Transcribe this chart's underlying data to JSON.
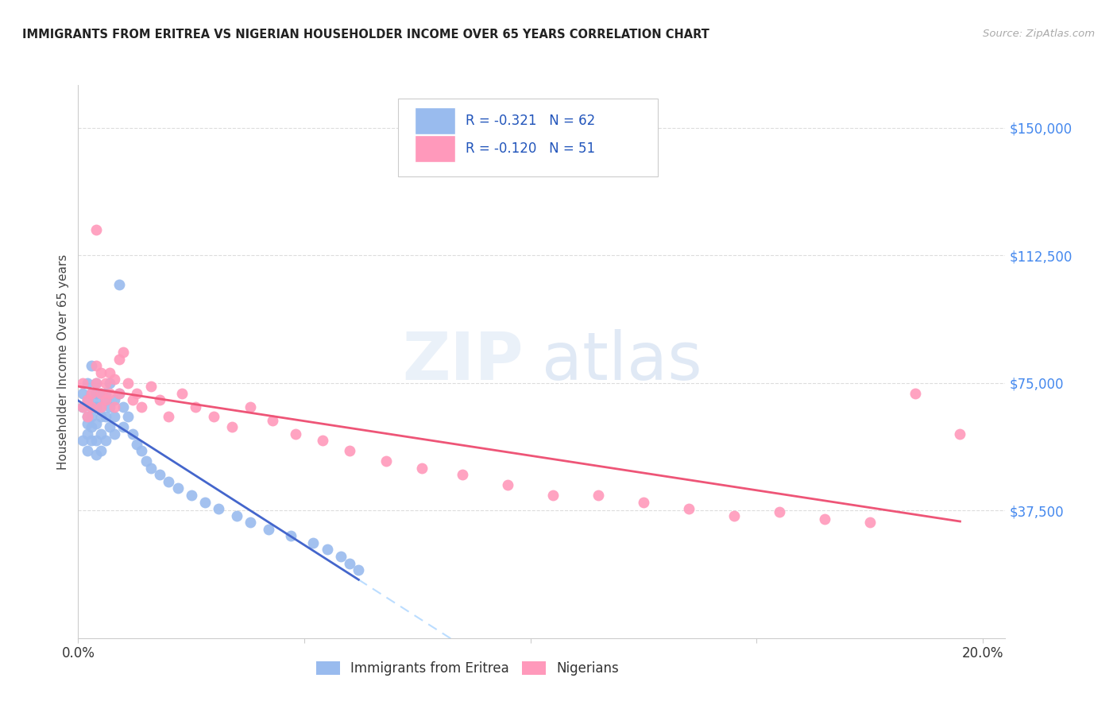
{
  "title": "IMMIGRANTS FROM ERITREA VS NIGERIAN HOUSEHOLDER INCOME OVER 65 YEARS CORRELATION CHART",
  "source": "Source: ZipAtlas.com",
  "ylabel": "Householder Income Over 65 years",
  "xlim": [
    0.0,
    0.205
  ],
  "ylim": [
    0,
    162500
  ],
  "yticks": [
    37500,
    75000,
    112500,
    150000
  ],
  "ytick_labels": [
    "$37,500",
    "$75,000",
    "$112,500",
    "$150,000"
  ],
  "xtick_labels": [
    "0.0%",
    "20.0%"
  ],
  "xtick_pos": [
    0.0,
    0.2
  ],
  "legend_eritrea": "R = -0.321   N = 62",
  "legend_nigerian": "R = -0.120   N = 51",
  "legend_label_eritrea": "Immigrants from Eritrea",
  "legend_label_nigerian": "Nigerians",
  "eritrea_color": "#99BBEE",
  "nigerian_color": "#FF99BB",
  "eritrea_line_color": "#4466CC",
  "nigerian_line_color": "#EE5577",
  "eritrea_ext_color": "#BBDDFF",
  "eritrea_x": [
    0.001,
    0.001,
    0.001,
    0.002,
    0.002,
    0.002,
    0.002,
    0.002,
    0.002,
    0.003,
    0.003,
    0.003,
    0.003,
    0.003,
    0.003,
    0.004,
    0.004,
    0.004,
    0.004,
    0.004,
    0.004,
    0.004,
    0.005,
    0.005,
    0.005,
    0.005,
    0.005,
    0.006,
    0.006,
    0.006,
    0.006,
    0.007,
    0.007,
    0.007,
    0.008,
    0.008,
    0.008,
    0.009,
    0.009,
    0.01,
    0.01,
    0.011,
    0.012,
    0.013,
    0.014,
    0.015,
    0.016,
    0.018,
    0.02,
    0.022,
    0.025,
    0.028,
    0.031,
    0.035,
    0.038,
    0.042,
    0.047,
    0.052,
    0.055,
    0.058,
    0.06,
    0.062
  ],
  "eritrea_y": [
    58000,
    68000,
    72000,
    55000,
    63000,
    70000,
    75000,
    65000,
    60000,
    68000,
    72000,
    58000,
    65000,
    80000,
    62000,
    70000,
    75000,
    63000,
    68000,
    72000,
    58000,
    54000,
    68000,
    72000,
    65000,
    60000,
    55000,
    70000,
    65000,
    72000,
    58000,
    75000,
    68000,
    62000,
    70000,
    65000,
    60000,
    104000,
    72000,
    68000,
    62000,
    65000,
    60000,
    57000,
    55000,
    52000,
    50000,
    48000,
    46000,
    44000,
    42000,
    40000,
    38000,
    36000,
    34000,
    32000,
    30000,
    28000,
    26000,
    24000,
    22000,
    20000
  ],
  "nigerian_x": [
    0.001,
    0.001,
    0.002,
    0.002,
    0.003,
    0.003,
    0.004,
    0.004,
    0.004,
    0.005,
    0.005,
    0.005,
    0.006,
    0.006,
    0.007,
    0.007,
    0.008,
    0.008,
    0.009,
    0.009,
    0.01,
    0.011,
    0.012,
    0.013,
    0.014,
    0.016,
    0.018,
    0.02,
    0.023,
    0.026,
    0.03,
    0.034,
    0.038,
    0.043,
    0.048,
    0.054,
    0.06,
    0.068,
    0.076,
    0.085,
    0.095,
    0.105,
    0.115,
    0.125,
    0.135,
    0.145,
    0.155,
    0.165,
    0.175,
    0.185,
    0.195
  ],
  "nigerian_y": [
    68000,
    75000,
    70000,
    65000,
    72000,
    68000,
    80000,
    75000,
    120000,
    78000,
    72000,
    68000,
    75000,
    70000,
    78000,
    72000,
    76000,
    68000,
    82000,
    72000,
    84000,
    75000,
    70000,
    72000,
    68000,
    74000,
    70000,
    65000,
    72000,
    68000,
    65000,
    62000,
    68000,
    64000,
    60000,
    58000,
    55000,
    52000,
    50000,
    48000,
    45000,
    42000,
    42000,
    40000,
    38000,
    36000,
    37000,
    35000,
    34000,
    72000,
    60000
  ]
}
